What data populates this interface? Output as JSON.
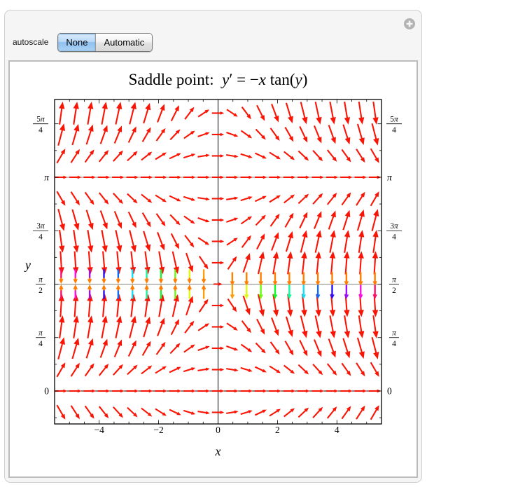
{
  "window": {
    "expand_icon": "plus"
  },
  "controls": {
    "label": "autoscale",
    "options": [
      {
        "label": "None",
        "selected": true
      },
      {
        "label": "Automatic",
        "selected": false
      }
    ]
  },
  "chart_data": {
    "type": "vector-field",
    "title_plain": "Saddle point:  y′ = −x tan(y)",
    "title_segments": [
      [
        "Saddle point:  ",
        false
      ],
      [
        "y",
        true
      ],
      [
        "′",
        false
      ],
      [
        " = −",
        false
      ],
      [
        "x",
        true
      ],
      [
        " tan(",
        false
      ],
      [
        "y",
        true
      ],
      [
        ")",
        false
      ]
    ],
    "ode": "y' = -x*tan(y)",
    "xlabel": "x",
    "ylabel": "y",
    "x_range": [
      -5.5,
      5.5
    ],
    "y_range": [
      -0.484,
      4.284
    ],
    "x_ticks": {
      "major_values": [
        -4,
        -2,
        0,
        2,
        4
      ],
      "major_labels": [
        "−4",
        "−2",
        "0",
        "2",
        "4"
      ],
      "minor_step": 0.5
    },
    "y_ticks": {
      "minor_step_over_pi": 0.125,
      "labels": [
        {
          "value": 0,
          "plain": "0",
          "italic": false
        },
        {
          "value": 0.7853981634,
          "num": [
            [
              "π",
              true
            ]
          ],
          "den": "4"
        },
        {
          "value": 1.5707963268,
          "num": [
            [
              "π",
              true
            ]
          ],
          "den": "2"
        },
        {
          "value": 2.3561944902,
          "num": [
            [
              "3",
              false
            ],
            [
              "π",
              true
            ]
          ],
          "den": "4"
        },
        {
          "value": 3.1415926536,
          "plain": "π",
          "italic": true
        },
        {
          "value": 3.926990817,
          "num": [
            [
              "5",
              false
            ],
            [
              "π",
              true
            ]
          ],
          "den": "4"
        }
      ]
    },
    "grid": {
      "x_step": 0.48,
      "x_half_count": 11,
      "y_step_over_pi": 0.1,
      "k_min": -1,
      "k_max": 13
    },
    "gridlines_y": [
      1.5707963268,
      3.1415926536
    ],
    "axes": {
      "vertical_at_x": 0,
      "horizontal_at_y": 0
    },
    "special_row": {
      "y_over_pi": 0.5,
      "hue_slope": 0.173,
      "hue_offset": 0.02
    },
    "style": {
      "arrow_color": "#f91505",
      "special_orange": "#ff7d00",
      "gridline_color": "#848484",
      "axis_color": "#000000",
      "frame_color": "#000000",
      "panel_bg": "#f5f5f5",
      "selected_blue": "#90c2f0"
    }
  }
}
